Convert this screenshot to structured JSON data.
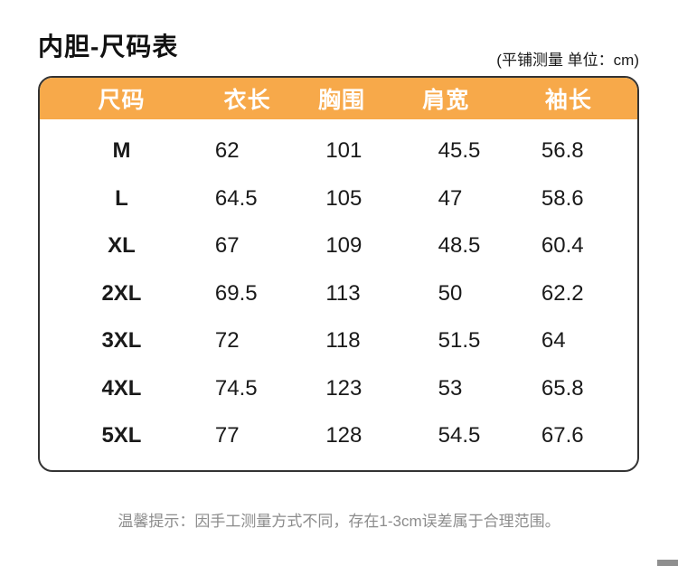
{
  "page": {
    "title": "内胆-尺码表",
    "unit_note": "(平铺测量 单位：cm)",
    "footer_note": "温馨提示：因手工测量方式不同，存在1-3cm误差属于合理范围。"
  },
  "colors": {
    "header_bg": "#F7A94A",
    "header_text": "#FFFFFF",
    "table_border": "#333333",
    "body_text": "#1A1A1A",
    "note_text": "#8C8C8C"
  },
  "chart_data": {
    "type": "table",
    "title": "内胆-尺码表",
    "unit": "cm",
    "measure_method": "平铺测量",
    "columns": [
      "尺码",
      "衣长",
      "胸围",
      "肩宽",
      "袖长"
    ],
    "rows": [
      {
        "size": "M",
        "values": [
          "62",
          "101",
          "45.5",
          "56.8"
        ]
      },
      {
        "size": "L",
        "values": [
          "64.5",
          "105",
          "47",
          "58.6"
        ]
      },
      {
        "size": "XL",
        "values": [
          "67",
          "109",
          "48.5",
          "60.4"
        ]
      },
      {
        "size": "2XL",
        "values": [
          "69.5",
          "113",
          "50",
          "62.2"
        ]
      },
      {
        "size": "3XL",
        "values": [
          "72",
          "118",
          "51.5",
          "64"
        ]
      },
      {
        "size": "4XL",
        "values": [
          "74.5",
          "123",
          "53",
          "65.8"
        ]
      },
      {
        "size": "5XL",
        "values": [
          "77",
          "128",
          "54.5",
          "67.6"
        ]
      }
    ]
  }
}
